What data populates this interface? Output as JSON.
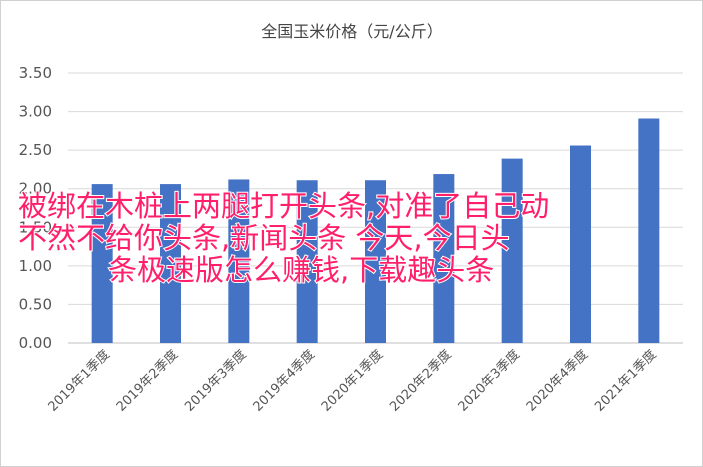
{
  "chart_data": {
    "type": "bar",
    "title": "全国玉米价格（元/公斤）",
    "categories": [
      "2019年1季度",
      "2019年2季度",
      "2019年3季度",
      "2019年4季度",
      "2020年1季度",
      "2020年2季度",
      "2020年3季度",
      "2020年4季度",
      "2021年1季度"
    ],
    "values": [
      2.06,
      2.06,
      2.12,
      2.11,
      2.11,
      2.19,
      2.39,
      2.56,
      2.91
    ],
    "ylim": [
      0,
      3.5
    ],
    "yticks": [
      "0.00",
      "0.50",
      "1.00",
      "1.50",
      "2.00",
      "2.50",
      "3.00",
      "3.50"
    ],
    "grid": true,
    "bar_color": "#4472c4"
  },
  "overlay": {
    "lines": [
      "被绑在木桩上两腿打开头条,对准了自己动",
      "不然不给你头条,新闻头条 今天,今日头",
      "条极速版怎么赚钱,下载趣头条"
    ],
    "color": "#ff1f6b"
  }
}
